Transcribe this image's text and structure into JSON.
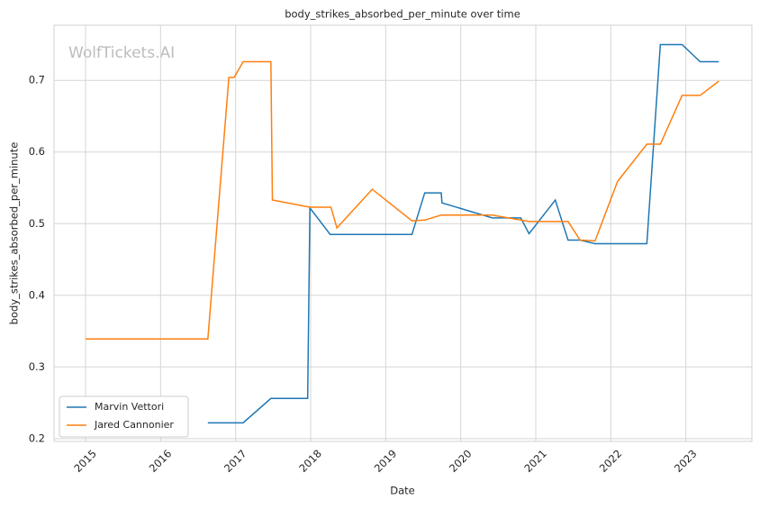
{
  "chart_data": {
    "type": "line",
    "title": "body_strikes_absorbed_per_minute over time",
    "x_label": "Date",
    "y_label": "body_strikes_absorbed_per_minute",
    "watermark": "WolfTickets.AI",
    "xlim": [
      2014.58,
      2023.88
    ],
    "xticks": [
      2015,
      2016,
      2017,
      2018,
      2019,
      2020,
      2021,
      2022,
      2023
    ],
    "ylim": [
      0.196,
      0.777
    ],
    "yticks": [
      0.2,
      0.3,
      0.4,
      0.5,
      0.6,
      0.7
    ],
    "grid": true,
    "legend": "lower left",
    "series": [
      {
        "name": "Marvin Vettori",
        "color": "#1f77b4",
        "x": [
          2016.63,
          2017.1,
          2017.47,
          2017.96,
          2017.99,
          2018.26,
          2019.35,
          2019.52,
          2019.74,
          2019.75,
          2020.42,
          2020.8,
          2020.91,
          2021.26,
          2021.43,
          2021.59,
          2021.79,
          2022.48,
          2022.66,
          2022.95,
          2023.19,
          2023.44
        ],
        "values": [
          0.222,
          0.222,
          0.256,
          0.256,
          0.522,
          0.485,
          0.485,
          0.543,
          0.543,
          0.529,
          0.508,
          0.508,
          0.486,
          0.533,
          0.477,
          0.477,
          0.472,
          0.472,
          0.75,
          0.75,
          0.726,
          0.726
        ]
      },
      {
        "name": "Jared Cannonier",
        "color": "#ff7f0e",
        "x": [
          2015.0,
          2016.63,
          2016.91,
          2016.98,
          2017.1,
          2017.47,
          2017.49,
          2017.99,
          2018.27,
          2018.35,
          2018.82,
          2019.35,
          2019.52,
          2019.74,
          2020.42,
          2020.91,
          2021.43,
          2021.59,
          2021.79,
          2022.09,
          2022.48,
          2022.66,
          2022.95,
          2023.19,
          2023.44
        ],
        "values": [
          0.339,
          0.339,
          0.704,
          0.704,
          0.726,
          0.726,
          0.533,
          0.523,
          0.523,
          0.494,
          0.548,
          0.504,
          0.505,
          0.512,
          0.512,
          0.503,
          0.503,
          0.477,
          0.476,
          0.559,
          0.611,
          0.611,
          0.679,
          0.679,
          0.699
        ]
      }
    ]
  }
}
